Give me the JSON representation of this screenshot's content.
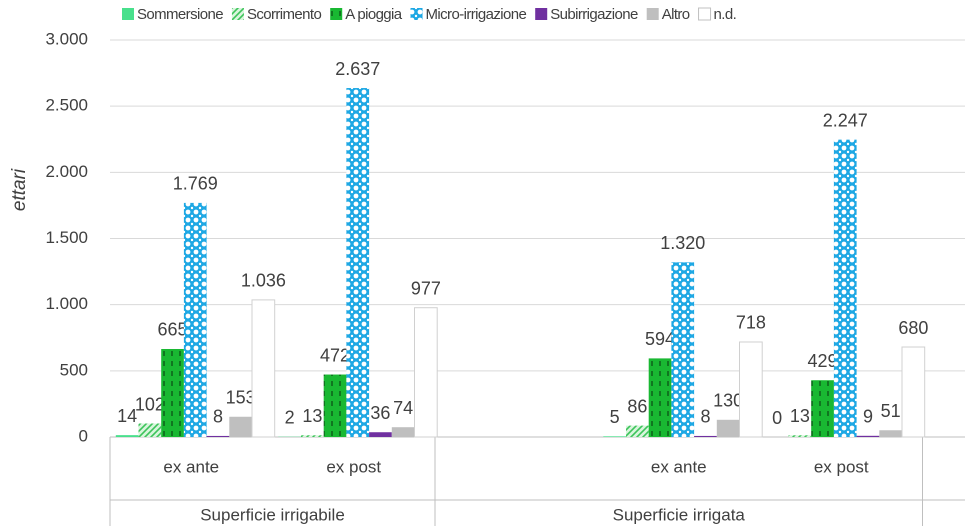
{
  "chart_data": {
    "type": "bar",
    "y_label": "ettari",
    "groups": [
      {
        "name": "Superficie irrigabile",
        "categories": [
          "ex ante",
          "ex post"
        ]
      },
      {
        "name": "Superficie irrigata",
        "categories": [
          null,
          "ex ante",
          "ex post"
        ]
      }
    ],
    "series": [
      {
        "name": "Sommersione",
        "color": "#48e08c",
        "pattern": "solid",
        "values": [
          14,
          2,
          null,
          5,
          0
        ]
      },
      {
        "name": "Scorrimento",
        "color": "#3cc45a",
        "pattern": "hatch",
        "values": [
          102,
          13,
          null,
          86,
          13
        ]
      },
      {
        "name": "A pioggia",
        "color": "#19b832",
        "pattern": "dash",
        "values": [
          665,
          472,
          null,
          594,
          429
        ]
      },
      {
        "name": "Micro-irrigazione",
        "color": "#1ea8e4",
        "pattern": "dots",
        "values": [
          1769,
          2637,
          null,
          1320,
          2247
        ],
        "value_labels": [
          "1.769",
          "2.637",
          null,
          "1.320",
          "2.247"
        ]
      },
      {
        "name": "Subirrigazione",
        "color": "#7030a0",
        "pattern": "solid",
        "values": [
          8,
          36,
          null,
          8,
          9
        ]
      },
      {
        "name": "Altro",
        "color": "#bfbfbf",
        "pattern": "solid",
        "values": [
          153,
          74,
          null,
          130,
          51
        ]
      },
      {
        "name": "n.d.",
        "color": "#ffffff",
        "pattern": "outline",
        "values": [
          1036,
          977,
          null,
          718,
          680
        ],
        "value_labels": [
          "1.036",
          null,
          null,
          null,
          null
        ]
      }
    ],
    "ylim": [
      0,
      3000
    ],
    "yticks": [
      0,
      500,
      {
        "value": 1000,
        "label": "1.000"
      },
      {
        "value": 1500,
        "label": "1.500"
      },
      {
        "value": 2000,
        "label": "2.000"
      },
      {
        "value": 2500,
        "label": "2.500"
      },
      {
        "value": 3000,
        "label": "3.000"
      }
    ],
    "grid": true,
    "legend": "top"
  }
}
